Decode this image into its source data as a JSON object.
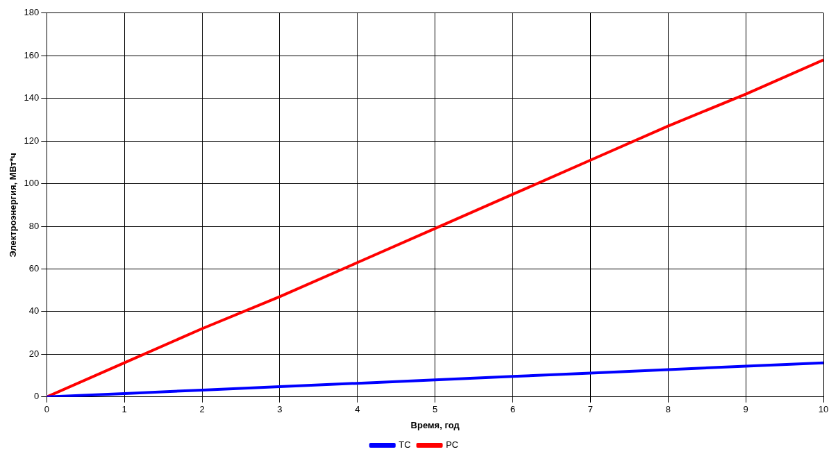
{
  "chart_data": {
    "type": "line",
    "xlabel": "Время, год",
    "ylabel": "Электроэнергия, МВт*ч",
    "xlim": [
      0,
      10
    ],
    "xticks": [
      0,
      1,
      2,
      3,
      4,
      5,
      6,
      7,
      8,
      9,
      10
    ],
    "ylim": [
      0,
      180
    ],
    "yticks": [
      0,
      20,
      40,
      60,
      80,
      100,
      120,
      140,
      160,
      180
    ],
    "grid": true,
    "legend": "bottom",
    "marker": "none",
    "line_style": "solid",
    "series": [
      {
        "name": "TC",
        "color": "#0000ff",
        "x": [
          0,
          1,
          2,
          3,
          4,
          5,
          6,
          7,
          8,
          9,
          10
        ],
        "values": [
          0,
          1.6,
          3.2,
          4.8,
          6.4,
          8,
          9.6,
          11.2,
          12.8,
          14.4,
          16
        ]
      },
      {
        "name": "PC",
        "color": "#ff0000",
        "x": [
          0,
          1,
          2,
          3,
          4,
          5,
          6,
          7,
          8,
          9,
          10
        ],
        "values": [
          0,
          16,
          32,
          47,
          63,
          79,
          95,
          111,
          127,
          142,
          158
        ]
      }
    ]
  }
}
